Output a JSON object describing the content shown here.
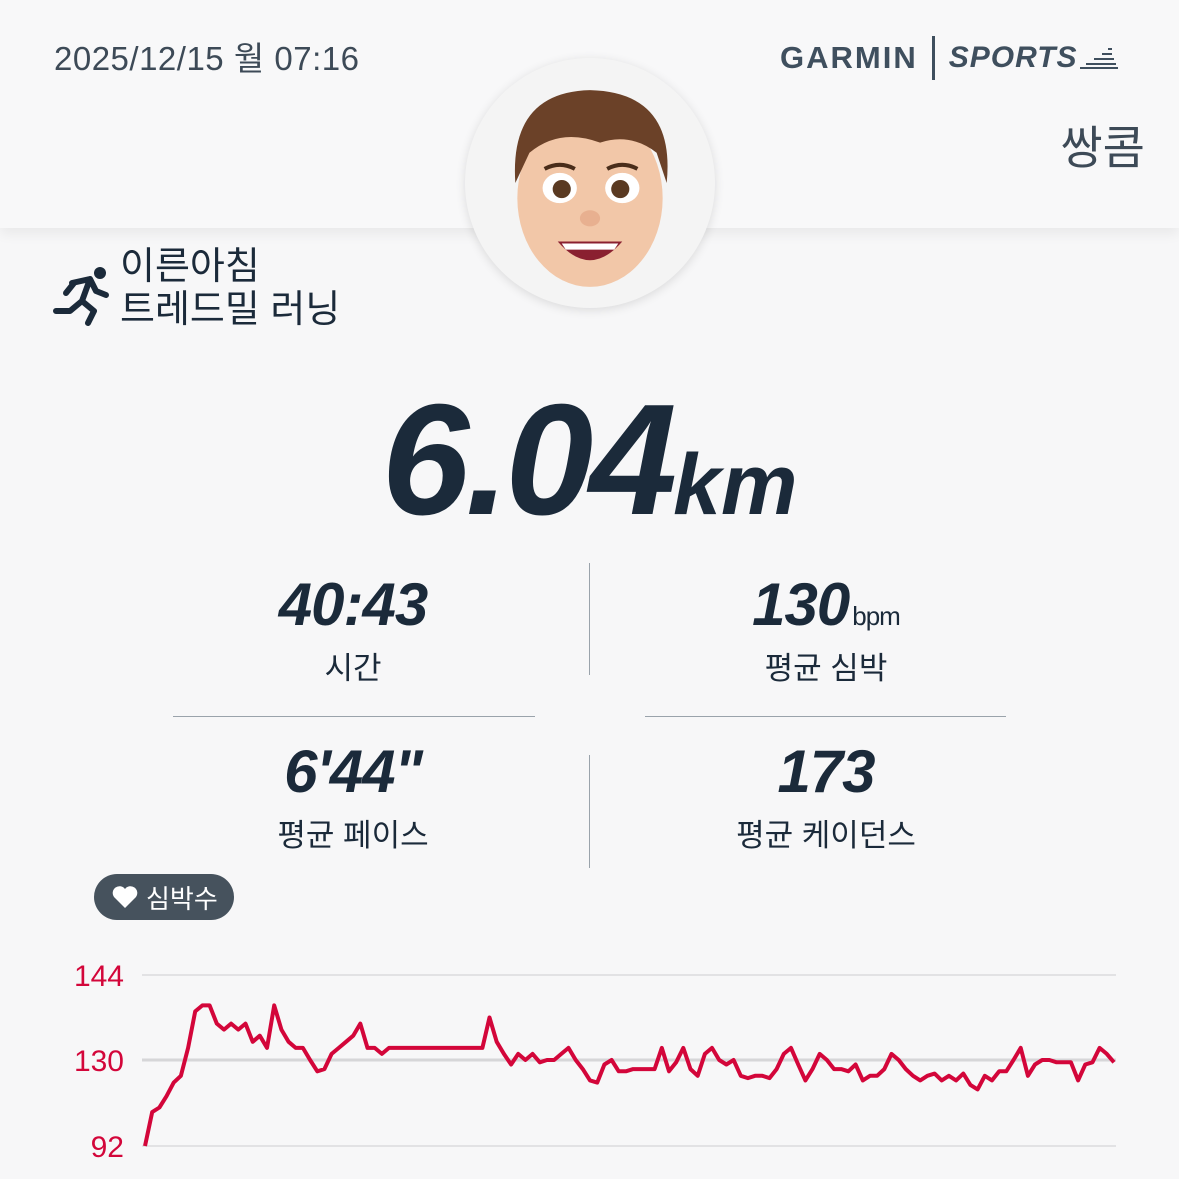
{
  "header": {
    "datetime": "2025/12/15 월 07:16",
    "brand": "GARMIN",
    "brand_sub": "SPORTS",
    "username": "쌍콤"
  },
  "activity": {
    "icon": "running-icon",
    "line1": "이른아침",
    "line2": "트레드밀 러닝"
  },
  "distance": {
    "value": "6.04",
    "unit": "km"
  },
  "stats": [
    {
      "value": "40:43",
      "unit": "",
      "label": "시간"
    },
    {
      "value": "130",
      "unit": "bpm",
      "label": "평균 심박"
    },
    {
      "value": "6'44\"",
      "unit": "",
      "label": "평균 페이스"
    },
    {
      "value": "173",
      "unit": "",
      "label": "평균 케이던스"
    }
  ],
  "heart_badge": {
    "icon": "heart-icon",
    "label": "심박수"
  },
  "colors": {
    "text": "#1b2a3a",
    "line": "#d3063a",
    "badge": "#46525d"
  },
  "chart_data": {
    "type": "line",
    "title": "",
    "ytick_labels": [
      "144",
      "130",
      "92"
    ],
    "ylim": [
      92,
      144
    ],
    "grid": true,
    "series": [
      {
        "values": [
          92,
          107,
          109,
          114,
          120,
          123,
          132,
          138,
          139,
          139,
          136,
          135,
          136,
          135,
          136,
          133,
          134,
          132,
          139,
          135,
          133,
          132,
          132,
          130,
          125,
          126,
          131,
          132,
          133,
          134,
          136,
          132,
          132,
          131,
          132,
          132,
          132,
          132,
          132,
          132,
          132,
          132,
          132,
          132,
          132,
          132,
          132,
          132,
          137,
          133,
          131,
          128,
          131,
          130,
          131,
          129,
          130,
          130,
          131,
          132,
          130,
          126,
          121,
          120,
          128,
          130,
          125,
          125,
          126,
          126,
          126,
          126,
          132,
          125,
          129,
          132,
          126,
          123,
          131,
          132,
          130,
          128,
          130,
          123,
          122,
          123,
          123,
          122,
          126,
          131,
          132,
          128,
          121,
          126,
          131,
          130,
          126,
          126,
          125,
          128,
          121,
          123,
          123,
          126,
          131,
          130,
          126,
          123,
          121,
          123,
          124,
          121,
          123,
          121,
          124,
          119,
          117,
          123,
          121,
          125,
          125,
          130,
          132,
          123,
          128,
          130,
          130,
          129,
          129,
          129,
          121,
          128,
          129,
          132,
          131,
          129
        ]
      }
    ]
  }
}
